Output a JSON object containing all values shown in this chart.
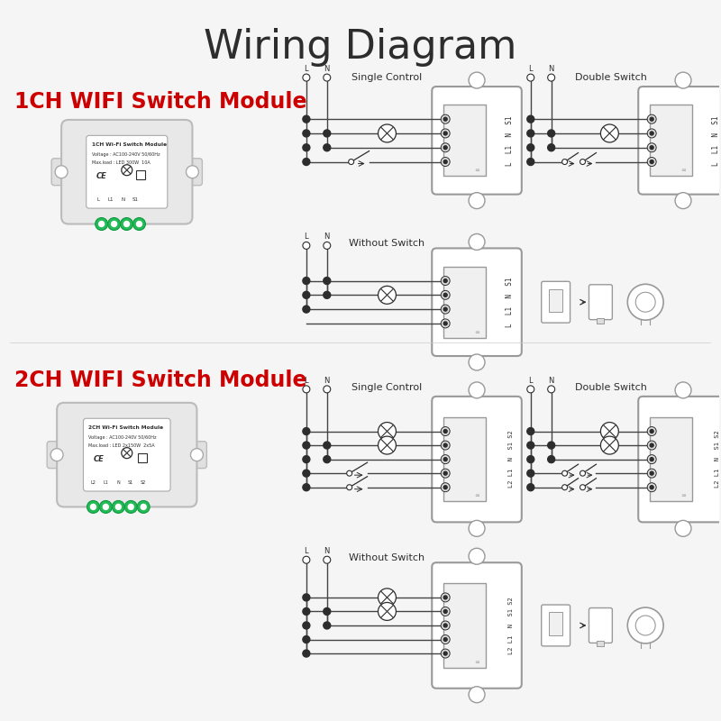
{
  "title": "Wiring Diagram",
  "title_fontsize": 32,
  "title_color": "#2d2d2d",
  "bg_color": "#f5f5f5",
  "label_1ch": "1CH WIFI Switch Module",
  "label_2ch": "2CH WIFI Switch Module",
  "label_color": "#cc0000",
  "label_fontsize": 17,
  "module_1ch_lines": [
    "1CH Wi-Fi Switch Module",
    "Voltage : AC100-240V 50/60Hz",
    "Max.load : LED 300W  10A"
  ],
  "module_2ch_lines": [
    "2CH Wi-Fi Switch Module",
    "Voltage : AC100-240V 50/60Hz",
    "Max.load : LED 2x150W  2x5A"
  ],
  "terminals_1ch": [
    "L",
    "L1",
    "N",
    "S1"
  ],
  "terminals_2ch": [
    "L2",
    "L1",
    "N",
    "S1",
    "S2"
  ],
  "diagram_gray": "#999999",
  "diagram_dark": "#2d2d2d",
  "line_color": "#444444",
  "terminal_color": "#22bb55",
  "wire_lw": 1.0,
  "sc1_label": "Single Control",
  "ds1_label": "Double Switch",
  "ws1_label": "Without Switch",
  "sc2_label": "Single Control",
  "ds2_label": "Double Switch",
  "ws2_label": "Without Switch"
}
